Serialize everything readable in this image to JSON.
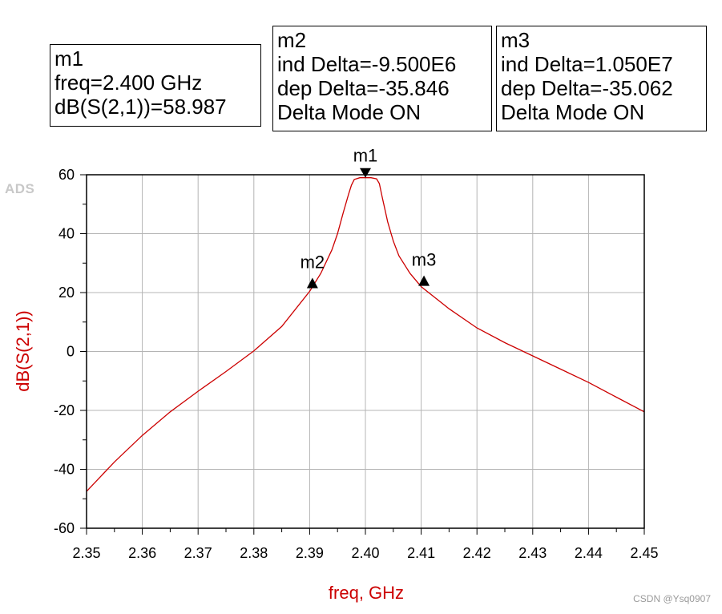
{
  "markers": {
    "m1": {
      "title": "m1",
      "lines": [
        "freq=2.400 GHz",
        "dB(S(2,1))=58.987"
      ]
    },
    "m2": {
      "title": "m2",
      "lines": [
        "ind Delta=-9.500E6",
        "dep Delta=-35.846",
        "Delta Mode ON"
      ]
    },
    "m3": {
      "title": "m3",
      "lines": [
        "ind Delta=1.050E7",
        "dep Delta=-35.062",
        "Delta Mode ON"
      ]
    }
  },
  "logo": "ADS",
  "watermark": "CSDN @Ysq0907",
  "chart_data": {
    "type": "line",
    "xlabel": "freq, GHz",
    "ylabel": "dB(S(2,1))",
    "xlim": [
      2.35,
      2.45
    ],
    "ylim": [
      -60,
      60
    ],
    "xticks": [
      "2.35",
      "2.36",
      "2.37",
      "2.38",
      "2.39",
      "2.40",
      "2.41",
      "2.42",
      "2.43",
      "2.44",
      "2.45"
    ],
    "yticks": [
      "60",
      "40",
      "20",
      "0",
      "-20",
      "-40",
      "-60"
    ],
    "grid": true,
    "series": [
      {
        "color": "#cc0000",
        "x": [
          2.35,
          2.355,
          2.36,
          2.365,
          2.37,
          2.375,
          2.38,
          2.385,
          2.39,
          2.392,
          2.394,
          2.395,
          2.396,
          2.397,
          2.3975,
          2.398,
          2.399,
          2.4,
          2.401,
          2.402,
          2.4025,
          2.403,
          2.404,
          2.405,
          2.406,
          2.408,
          2.41,
          2.415,
          2.42,
          2.425,
          2.43,
          2.435,
          2.44,
          2.445,
          2.45
        ],
        "y": [
          -47.5,
          -37.5,
          -28.5,
          -20.5,
          -13.5,
          -6.8,
          0.2,
          8.5,
          20.4,
          26.5,
          34.5,
          40.0,
          47.0,
          53.5,
          56.5,
          58.4,
          58.987,
          58.987,
          58.987,
          58.6,
          57.0,
          52.5,
          44.0,
          37.5,
          32.5,
          26.5,
          22.0,
          14.5,
          8.0,
          3.0,
          -1.5,
          -6.0,
          -10.5,
          -15.5,
          -20.5
        ]
      }
    ],
    "points": [
      {
        "label": "m1",
        "x": 2.4,
        "y": 58.987,
        "shape": "down-triangle"
      },
      {
        "label": "m2",
        "x": 2.3905,
        "y": 23.141,
        "shape": "up-triangle"
      },
      {
        "label": "m3",
        "x": 2.4105,
        "y": 23.925,
        "shape": "up-triangle"
      }
    ],
    "colors": {
      "trace": "#cc0000",
      "axis_label": "#cc0000",
      "grid": "#b4b4b4",
      "frame": "#000000"
    }
  }
}
